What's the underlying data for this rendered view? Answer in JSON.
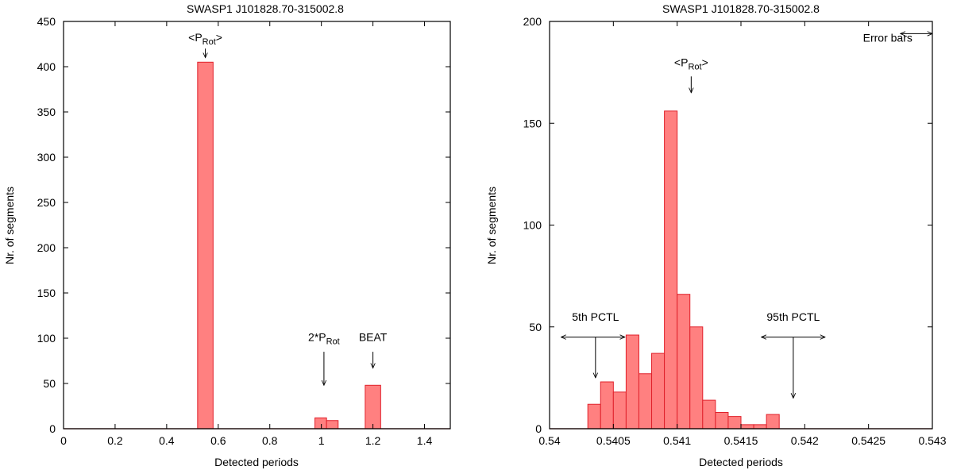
{
  "chart_data": [
    {
      "type": "bar",
      "title": "SWASP1 J101828.70-315002.8",
      "xlabel": "Detected periods",
      "ylabel": "Nr. of segments",
      "xlim": [
        0,
        1.5
      ],
      "ylim": [
        0,
        450
      ],
      "xticks": [
        0,
        0.2,
        0.4,
        0.6,
        0.8,
        1,
        1.2,
        1.4
      ],
      "xtick_labels": [
        "0",
        "0.2",
        "0.4",
        "0.6",
        "0.8",
        "1",
        "1.2",
        "1.4"
      ],
      "yticks": [
        0,
        50,
        100,
        150,
        200,
        250,
        300,
        350,
        400,
        450
      ],
      "ytick_labels": [
        "0",
        "50",
        "100",
        "150",
        "200",
        "250",
        "300",
        "350",
        "400",
        "450"
      ],
      "bar_color": "#ff8080",
      "bars": [
        {
          "x0": 0.52,
          "x1": 0.58,
          "value": 405
        },
        {
          "x0": 0.975,
          "x1": 1.02,
          "value": 12
        },
        {
          "x0": 1.02,
          "x1": 1.065,
          "value": 9
        },
        {
          "x0": 1.17,
          "x1": 1.23,
          "value": 48
        }
      ],
      "annotations": [
        {
          "label_pre": "<P",
          "label_sub": "Rot",
          "label_post": ">",
          "x": 0.55,
          "y_text": 428,
          "arrow": [
            0.55,
            420,
            0.55,
            410
          ],
          "anchor": "middle"
        },
        {
          "label_pre": "2*P",
          "label_sub": "Rot",
          "label_post": "",
          "x": 1.01,
          "y_text": 97,
          "arrow": [
            1.01,
            85,
            1.01,
            48
          ],
          "anchor": "middle"
        },
        {
          "label_pre": "BEAT",
          "label_sub": "",
          "label_post": "",
          "x": 1.2,
          "y_text": 97,
          "arrow": [
            1.2,
            85,
            1.2,
            67
          ],
          "anchor": "middle"
        }
      ]
    },
    {
      "type": "bar",
      "title": "SWASP1 J101828.70-315002.8",
      "xlabel": "Detected periods",
      "ylabel": "Nr. of segments",
      "xlim": [
        0.54,
        0.543
      ],
      "ylim": [
        0,
        200
      ],
      "xticks": [
        0.54,
        0.5405,
        0.541,
        0.5415,
        0.542,
        0.5425,
        0.543
      ],
      "xtick_labels": [
        "0.54",
        "0.5405",
        "0.541",
        "0.5415",
        "0.542",
        "0.5425",
        "0.543"
      ],
      "yticks": [
        0,
        50,
        100,
        150,
        200
      ],
      "ytick_labels": [
        "0",
        "50",
        "100",
        "150",
        "200"
      ],
      "bar_color": "#ff8080",
      "bin_width": 0.0001,
      "bin_starts": [
        0.5403,
        0.5404,
        0.5405,
        0.5406,
        0.5407,
        0.5408,
        0.5409,
        0.541,
        0.5411,
        0.5412,
        0.5413,
        0.5414,
        0.5415,
        0.5416,
        0.5417,
        0.5418,
        0.5419,
        0.542
      ],
      "values": [
        12,
        23,
        18,
        46,
        27,
        37,
        156,
        66,
        50,
        14,
        8,
        6,
        2,
        2,
        7,
        0,
        0,
        0
      ],
      "annotations": [
        {
          "label_pre": "<P",
          "label_sub": "Rot",
          "label_post": ">",
          "x": 0.54111,
          "y_text": 178,
          "arrow": [
            0.54111,
            173,
            0.54111,
            165
          ],
          "anchor": "middle"
        },
        {
          "label_pre": "5th PCTL",
          "label_sub": "",
          "label_post": "",
          "x": 0.54036,
          "y_text": 53,
          "arrow": [
            0.54036,
            45,
            0.54036,
            25
          ],
          "anchor": "middle"
        },
        {
          "label_pre": "95th PCTL",
          "label_sub": "",
          "label_post": "",
          "x": 0.54191,
          "y_text": 53,
          "arrow": [
            0.54191,
            45,
            0.54191,
            15
          ],
          "anchor": "middle"
        },
        {
          "label_pre": "Error bars",
          "label_sub": "",
          "label_post": "",
          "x": 0.54265,
          "y_text": 190,
          "arrow": null,
          "anchor": "middle"
        }
      ],
      "double_arrows": [
        {
          "x0": 0.54009,
          "x1": 0.54059,
          "y": 45
        },
        {
          "x0": 0.54166,
          "x1": 0.54216,
          "y": 45
        },
        {
          "x0": 0.54275,
          "x1": 0.543,
          "y": 194
        }
      ]
    }
  ]
}
